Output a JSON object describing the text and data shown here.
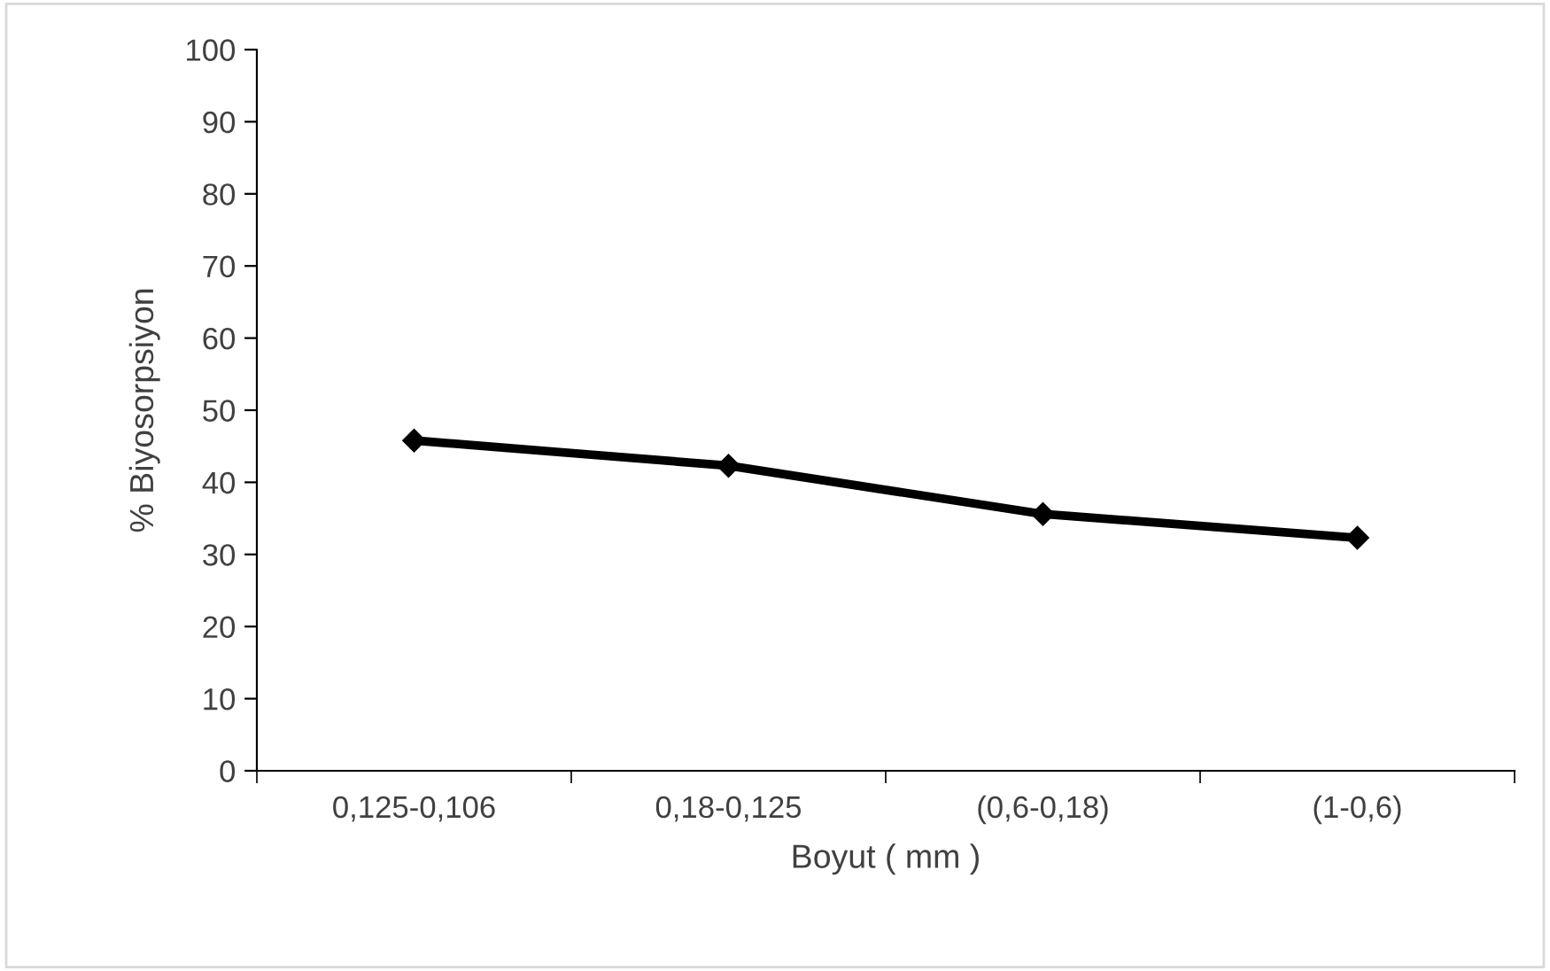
{
  "chart_data": {
    "type": "line",
    "xlabel": "Boyut ( mm )",
    "ylabel": "% Biyosorpsiyon",
    "categories": [
      "0,125-0,106",
      "0,18-0,125",
      "(0,6-0,18)",
      "(1-0,6)"
    ],
    "series": [
      {
        "color": "#000000",
        "values": [
          45.8,
          42.3,
          35.6,
          32.3
        ]
      }
    ],
    "ylim": [
      0,
      100
    ],
    "yticks": [
      0,
      10,
      20,
      30,
      40,
      50,
      60,
      70,
      80,
      90,
      100
    ],
    "marker": "diamond",
    "line_style": "solid",
    "grid": false,
    "legend": false
  }
}
